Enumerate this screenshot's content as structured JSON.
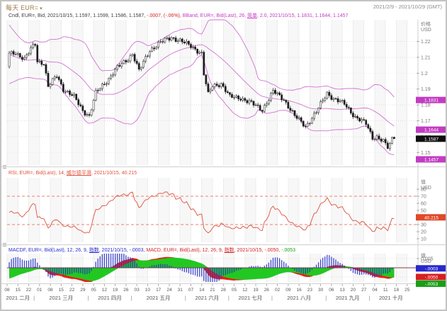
{
  "header": {
    "title": "每天 EUR=",
    "title_icon": "▾",
    "date_range": "2021/2/9 - 2021/10/29 (GMT)"
  },
  "legends": {
    "price": [
      {
        "t": "Cndl, EUR=, Bid, 2021/10/15, 1.1597, 1.1599, 1.1586, 1.1587, ",
        "c": "#3c3c3c"
      },
      {
        "t": "-.0007, (-.06%), ",
        "c": "#d42020"
      },
      {
        "t": "BBand, EUR=, Bid(Last), 26, ",
        "c": "#c23cc2"
      },
      {
        "t": "简单",
        "c": "#c23cc2",
        "u": true
      },
      {
        "t": ", 2.0, 2021/10/15, 1.1831, 1.1644, 1.1457",
        "c": "#c23cc2"
      }
    ],
    "rsi": [
      {
        "t": "RSI, EUR=, Bid(Last), 14, ",
        "c": "#e0503c"
      },
      {
        "t": "威尔德平滑",
        "c": "#e0503c",
        "u": true
      },
      {
        "t": ", 2021/10/15, 40.215",
        "c": "#e0503c"
      }
    ],
    "macd": [
      {
        "t": "MACDF, EUR=, Bid(Last), 12, 26, 9, ",
        "c": "#2828cc"
      },
      {
        "t": "指数",
        "c": "#2828cc",
        "u": true
      },
      {
        "t": ", 2021/10/15, -.0003, ",
        "c": "#2828cc"
      },
      {
        "t": "MACD, EUR=, Bid(Last), 12, 26, 9, ",
        "c": "#d42020"
      },
      {
        "t": "指数",
        "c": "#d42020",
        "u": true
      },
      {
        "t": ", 2021/10/15, -.0050, ",
        "c": "#d42020"
      },
      {
        "t": "-.0053",
        "c": "#16a016"
      }
    ]
  },
  "axes": {
    "price": {
      "title": "价格",
      "unit": "USD",
      "ticks": [
        {
          "label": "1.22",
          "value": 1.22
        },
        {
          "label": "1.21",
          "value": 1.21
        },
        {
          "label": "1.2",
          "value": 1.2
        },
        {
          "label": "1.19",
          "value": 1.19
        },
        {
          "label": "1.18",
          "value": 1.18
        },
        {
          "label": "1.17",
          "value": 1.17
        },
        {
          "label": "1.16",
          "value": 1.16
        },
        {
          "label": "1.15",
          "value": 1.15
        }
      ],
      "badges": [
        {
          "label": "1.1831",
          "value": 1.1831,
          "color": "#c23cc2"
        },
        {
          "label": "1.1644",
          "value": 1.1644,
          "color": "#c23cc2"
        },
        {
          "label": "1.1587",
          "value": 1.1587,
          "color": "#101010"
        },
        {
          "label": "1.1457",
          "value": 1.1457,
          "color": "#c23cc2"
        }
      ]
    },
    "rsi": {
      "title": "值",
      "unit": "USD",
      "ticks": [
        {
          "label": "80",
          "value": 80
        },
        {
          "label": "70",
          "value": 70
        },
        {
          "label": "60",
          "value": 60
        },
        {
          "label": "50",
          "value": 50
        },
        {
          "label": "30",
          "value": 30
        },
        {
          "label": "20",
          "value": 20
        },
        {
          "label": "10",
          "value": 10
        }
      ],
      "levels": [
        70,
        30
      ],
      "badges": [
        {
          "label": "40.215",
          "value": 40.215,
          "color": "#e04828"
        }
      ]
    },
    "macd": {
      "title": "值",
      "unit": "USD",
      "ticks": [
        {
          "label": "0.005",
          "value": 0.005
        },
        {
          "label": "0",
          "value": 0
        },
        {
          "label": "-0.005",
          "value": -0.005
        }
      ],
      "badges": [
        {
          "label": "-.0003",
          "value": -0.0003,
          "color": "#2828cc"
        },
        {
          "label": "-.0050",
          "value": -0.005,
          "color": "#d42020"
        },
        {
          "label": "-.0053",
          "value": -0.0053,
          "color": "#16a016"
        }
      ]
    }
  },
  "time_axis": {
    "day_labels": [
      "08",
      "15",
      "22",
      "01",
      "08",
      "15",
      "22",
      "29",
      "05",
      "12",
      "19",
      "26",
      "03",
      "10",
      "17",
      "24",
      "31",
      "07",
      "14",
      "21",
      "28",
      "05",
      "12",
      "19",
      "26",
      "02",
      "09",
      "16",
      "23",
      "30",
      "06",
      "13",
      "20",
      "27",
      "04",
      "11",
      "18",
      "25"
    ],
    "months": [
      {
        "label": "2021 二月",
        "weeks": 3
      },
      {
        "label": "2021 三月",
        "weeks": 5
      },
      {
        "label": "2021 四月",
        "weeks": 4
      },
      {
        "label": "2021 五月",
        "weeks": 5
      },
      {
        "label": "2021 六月",
        "weeks": 4
      },
      {
        "label": "2021 七月",
        "weeks": 4
      },
      {
        "label": "2021 八月",
        "weeks": 5
      },
      {
        "label": "2021 九月",
        "weeks": 4
      },
      {
        "label": "2021 十月",
        "weeks": 4
      }
    ]
  },
  "colors": {
    "up": "#ffffff",
    "down": "#1a1a1a",
    "wick": "#1a1a1a",
    "bollinger": "#d06ad0",
    "rsi_line": "#e0503c",
    "rsi_levels": "#e88070",
    "macd_area": "#e82010",
    "signal_area": "#22c822",
    "histogram": "#2a35c8",
    "zero_line": "#804040",
    "grid": "#ececec",
    "grid_dot": "#dedede",
    "stripe": "#f7f7f7",
    "axis_text": "#777777",
    "frame": "#cfcfcf"
  },
  "chart_data": {
    "type": "candlestick_with_indicators",
    "instrument": "EUR=",
    "interval": "每天",
    "quote": "Bid",
    "date_range": [
      "2021/2/9",
      "2021/10/29"
    ],
    "last_candle": {
      "date": "2021/10/15",
      "open": 1.1597,
      "high": 1.1599,
      "low": 1.1586,
      "close": 1.1587,
      "change": -0.0007,
      "change_pct": "-0.06%"
    },
    "indicators": {
      "bollinger": {
        "period": 26,
        "ma_type": "简单",
        "stdev": 2.0,
        "upper": 1.1831,
        "mid": 1.1644,
        "lower": 1.1457
      },
      "rsi": {
        "period": 14,
        "mode": "威尔德平滑",
        "value": 40.215,
        "overbought": 70,
        "oversold": 30
      },
      "macd": {
        "fast": 12,
        "slow": 26,
        "signal_period": 9,
        "mode": "指数",
        "macdf": -0.0003,
        "macd": -0.005,
        "signal": -0.0053
      }
    },
    "price_axis_range": [
      1.142,
      1.2335
    ],
    "trading_days": 179,
    "close_keyframes": [
      [
        -25,
        1.229
      ],
      [
        -18,
        1.2165
      ],
      [
        -12,
        1.212
      ],
      [
        -6,
        1.1975
      ],
      [
        -1,
        1.2045
      ],
      [
        0,
        1.212
      ],
      [
        3,
        1.213
      ],
      [
        7,
        1.209
      ],
      [
        11,
        1.217
      ],
      [
        12,
        1.2185
      ],
      [
        13,
        1.2075
      ],
      [
        16,
        1.2065
      ],
      [
        18,
        1.1915
      ],
      [
        22,
        1.1985
      ],
      [
        25,
        1.19
      ],
      [
        30,
        1.185
      ],
      [
        34,
        1.1765
      ],
      [
        37,
        1.173
      ],
      [
        40,
        1.1875
      ],
      [
        45,
        1.195
      ],
      [
        50,
        1.2035
      ],
      [
        55,
        1.209
      ],
      [
        57,
        1.2125
      ],
      [
        60,
        1.2015
      ],
      [
        65,
        1.2145
      ],
      [
        70,
        1.2195
      ],
      [
        75,
        1.2225
      ],
      [
        79,
        1.2205
      ],
      [
        84,
        1.217
      ],
      [
        89,
        1.2125
      ],
      [
        90,
        1.1995
      ],
      [
        92,
        1.1865
      ],
      [
        94,
        1.192
      ],
      [
        98,
        1.1935
      ],
      [
        102,
        1.185
      ],
      [
        107,
        1.1845
      ],
      [
        112,
        1.181
      ],
      [
        117,
        1.177
      ],
      [
        122,
        1.1885
      ],
      [
        127,
        1.1835
      ],
      [
        132,
        1.173
      ],
      [
        137,
        1.1665
      ],
      [
        142,
        1.1755
      ],
      [
        147,
        1.1875
      ],
      [
        150,
        1.184
      ],
      [
        155,
        1.1805
      ],
      [
        160,
        1.1725
      ],
      [
        165,
        1.168
      ],
      [
        168,
        1.1595
      ],
      [
        170,
        1.16
      ],
      [
        173,
        1.157
      ],
      [
        175,
        1.153
      ],
      [
        178,
        1.1587
      ]
    ]
  }
}
